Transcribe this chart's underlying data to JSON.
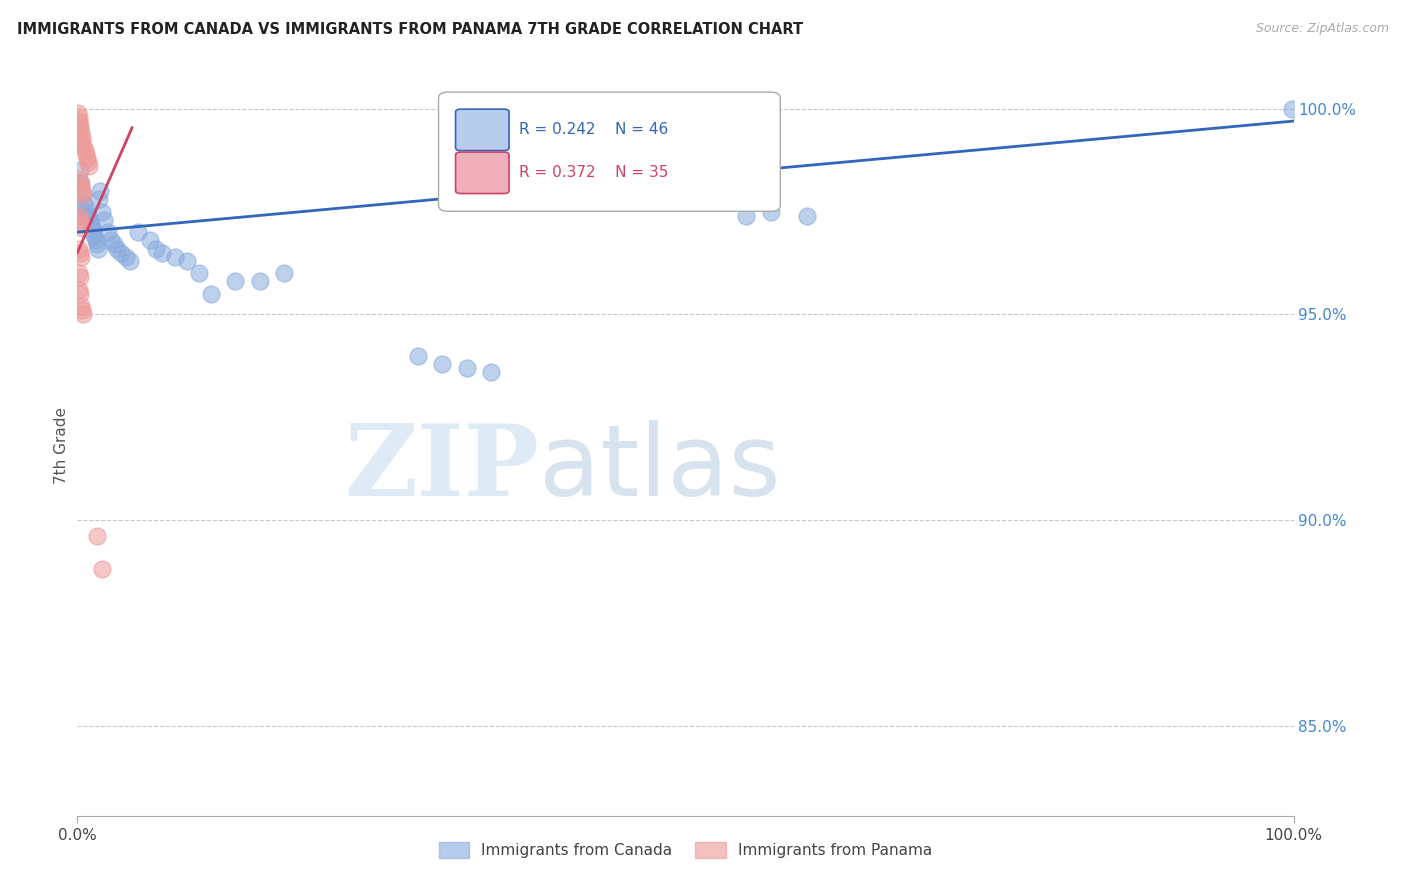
{
  "title": "IMMIGRANTS FROM CANADA VS IMMIGRANTS FROM PANAMA 7TH GRADE CORRELATION CHART",
  "source": "Source: ZipAtlas.com",
  "ylabel": "7th Grade",
  "ylabel_right_ticks": [
    "100.0%",
    "95.0%",
    "90.0%",
    "85.0%"
  ],
  "ylabel_right_vals": [
    1.0,
    0.95,
    0.9,
    0.85
  ],
  "xmin": 0.0,
  "xmax": 1.0,
  "ymin": 0.828,
  "ymax": 1.008,
  "legend_blue_r": "0.242",
  "legend_blue_n": "46",
  "legend_pink_r": "0.372",
  "legend_pink_n": "35",
  "legend_label_blue": "Immigrants from Canada",
  "legend_label_pink": "Immigrants from Panama",
  "watermark_zip": "ZIP",
  "watermark_atlas": "atlas",
  "bg_color": "#ffffff",
  "grid_color": "#c8c8c8",
  "blue_color": "#88aadd",
  "pink_color": "#ee9999",
  "trendline_blue": "#3366bb",
  "trendline_pink": "#cc4466",
  "blue_scatter_x": [
    0.002,
    0.003,
    0.004,
    0.005,
    0.006,
    0.007,
    0.008,
    0.009,
    0.01,
    0.011,
    0.012,
    0.013,
    0.014,
    0.015,
    0.016,
    0.017,
    0.018,
    0.019,
    0.02,
    0.022,
    0.025,
    0.028,
    0.03,
    0.033,
    0.036,
    0.04,
    0.043,
    0.05,
    0.06,
    0.065,
    0.07,
    0.08,
    0.09,
    0.1,
    0.11,
    0.13,
    0.15,
    0.17,
    0.28,
    0.3,
    0.32,
    0.34,
    0.55,
    0.57,
    0.6,
    0.999
  ],
  "blue_scatter_y": [
    0.985,
    0.982,
    0.979,
    0.977,
    0.976,
    0.975,
    0.974,
    0.974,
    0.973,
    0.972,
    0.971,
    0.97,
    0.969,
    0.968,
    0.967,
    0.966,
    0.978,
    0.98,
    0.975,
    0.973,
    0.97,
    0.968,
    0.967,
    0.966,
    0.965,
    0.964,
    0.963,
    0.97,
    0.968,
    0.966,
    0.965,
    0.964,
    0.963,
    0.96,
    0.955,
    0.958,
    0.958,
    0.96,
    0.94,
    0.938,
    0.937,
    0.936,
    0.974,
    0.975,
    0.974,
    1.0
  ],
  "pink_scatter_x": [
    0.0005,
    0.001,
    0.0015,
    0.002,
    0.0025,
    0.003,
    0.0035,
    0.004,
    0.005,
    0.006,
    0.007,
    0.008,
    0.009,
    0.01,
    0.001,
    0.002,
    0.003,
    0.004,
    0.005,
    0.001,
    0.002,
    0.003,
    0.004,
    0.001,
    0.002,
    0.003,
    0.001,
    0.002,
    0.001,
    0.002,
    0.003,
    0.004,
    0.005,
    0.016,
    0.02
  ],
  "pink_scatter_y": [
    0.999,
    0.998,
    0.997,
    0.996,
    0.995,
    0.994,
    0.993,
    0.992,
    0.991,
    0.99,
    0.989,
    0.988,
    0.987,
    0.986,
    0.983,
    0.982,
    0.981,
    0.98,
    0.979,
    0.974,
    0.973,
    0.972,
    0.971,
    0.966,
    0.965,
    0.964,
    0.96,
    0.959,
    0.956,
    0.955,
    0.952,
    0.951,
    0.95,
    0.896,
    0.888
  ]
}
